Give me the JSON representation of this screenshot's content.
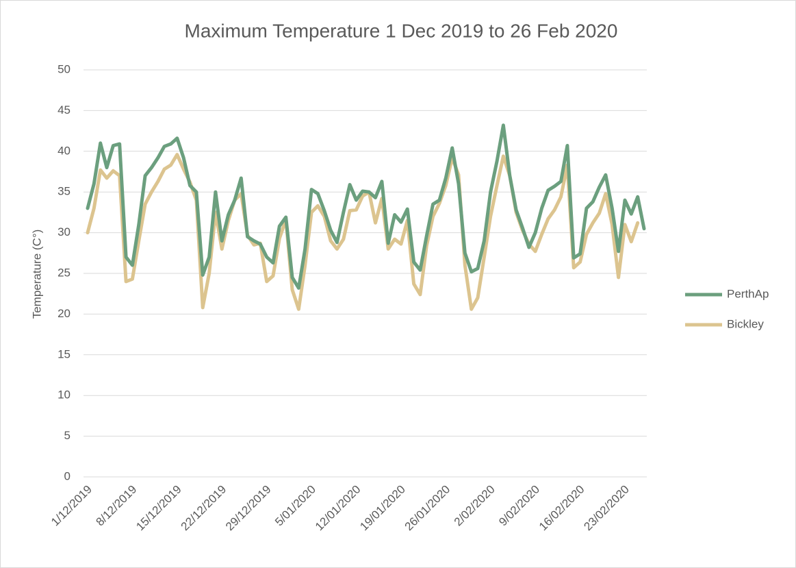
{
  "chart_data": {
    "type": "line",
    "title": "Maximum Temperature 1 Dec 2019 to 26 Feb 2020",
    "y_label": "Temperature (C°)",
    "categories": [
      "1/12/2019",
      null,
      null,
      null,
      null,
      null,
      null,
      "8/12/2019",
      null,
      null,
      null,
      null,
      null,
      null,
      "15/12/2019",
      null,
      null,
      null,
      null,
      null,
      null,
      "22/12/2019",
      null,
      null,
      null,
      null,
      null,
      null,
      "29/12/2019",
      null,
      null,
      null,
      null,
      null,
      null,
      "5/01/2020",
      null,
      null,
      null,
      null,
      null,
      null,
      "12/01/2020",
      null,
      null,
      null,
      null,
      null,
      null,
      "19/01/2020",
      null,
      null,
      null,
      null,
      null,
      null,
      "26/01/2020",
      null,
      null,
      null,
      null,
      null,
      null,
      "2/02/2020",
      null,
      null,
      null,
      null,
      null,
      null,
      "9/02/2020",
      null,
      null,
      null,
      null,
      null,
      null,
      "16/02/2020",
      null,
      null,
      null,
      null,
      null,
      null,
      "23/02/2020",
      null,
      null,
      null
    ],
    "series": [
      {
        "name": "PerthAp",
        "color": "#6b9f7e",
        "values": [
          33,
          36,
          41,
          38,
          40.7,
          40.9,
          27,
          26,
          31,
          37,
          38,
          39.2,
          40.6,
          40.9,
          41.6,
          39.2,
          35.8,
          35,
          24.8,
          27,
          35,
          29,
          32.2,
          34,
          36.7,
          29.5,
          29,
          28.6,
          27,
          26.3,
          30.8,
          31.9,
          24.5,
          23.2,
          28,
          35.3,
          34.8,
          32.7,
          30.3,
          28.8,
          32.5,
          35.9,
          34,
          35.1,
          35,
          34.3,
          36.3,
          28.7,
          32.2,
          31.3,
          32.9,
          26.4,
          25.4,
          29.6,
          33.5,
          34,
          36.7,
          40.4,
          36,
          27.5,
          25.2,
          25.6,
          29,
          35,
          38.8,
          43.2,
          37,
          32.8,
          30.6,
          28.2,
          30,
          33,
          35.2,
          35.7,
          36.3,
          40.7,
          26.9,
          27.4,
          33,
          33.8,
          35.6,
          37.1,
          33,
          27.7,
          34,
          32.3,
          34.4,
          30.5
        ]
      },
      {
        "name": "Bickley",
        "color": "#dcc48f",
        "values": [
          30,
          33,
          37.7,
          36.7,
          37.6,
          37,
          24,
          24.3,
          29,
          33.5,
          35,
          36.3,
          37.8,
          38.3,
          39.6,
          37.8,
          36.2,
          34,
          20.8,
          25,
          32.5,
          28,
          31.5,
          34,
          34.8,
          29.7,
          28.5,
          28.7,
          24,
          24.7,
          29.3,
          31.6,
          23,
          20.6,
          26,
          32.5,
          33.3,
          32,
          29,
          28,
          29.2,
          32.7,
          32.8,
          34.5,
          35,
          31.2,
          34.2,
          28,
          29.2,
          28.6,
          31.5,
          23.7,
          22.4,
          28.4,
          32,
          33.6,
          35.8,
          39.2,
          37.1,
          26,
          20.6,
          22,
          27,
          32,
          35.8,
          39.4,
          37,
          32.5,
          30.3,
          28.6,
          27.7,
          29.8,
          31.7,
          32.8,
          34.4,
          38.3,
          25.7,
          26.4,
          29.8,
          31.2,
          32.4,
          34.8,
          31,
          24.5,
          31,
          28.9,
          31.2,
          null
        ]
      }
    ],
    "ylim": [
      0,
      50
    ],
    "yticks": [
      0,
      5,
      10,
      15,
      20,
      25,
      30,
      35,
      40,
      45,
      50
    ],
    "grid": true,
    "legend": "right"
  }
}
